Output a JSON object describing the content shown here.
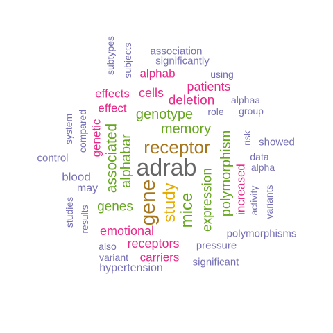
{
  "palette": {
    "purple": "#7570b3",
    "magenta": "#e7298a",
    "green": "#66a61e",
    "gold": "#e6ab02",
    "brown": "#a6761d",
    "gray": "#666666"
  },
  "words": [
    {
      "text": "adrab",
      "color": "gray"
    },
    {
      "text": "gene",
      "color": "brown"
    },
    {
      "text": "receptor",
      "color": "brown"
    },
    {
      "text": "study",
      "color": "gold"
    },
    {
      "text": "mice",
      "color": "green"
    },
    {
      "text": "associated",
      "color": "green"
    },
    {
      "text": "alphabar",
      "color": "green"
    },
    {
      "text": "memory",
      "color": "green"
    },
    {
      "text": "genotype",
      "color": "green"
    },
    {
      "text": "polymorphism",
      "color": "green"
    },
    {
      "text": "expression",
      "color": "green"
    },
    {
      "text": "genes",
      "color": "green"
    },
    {
      "text": "deletion",
      "color": "magenta"
    },
    {
      "text": "patients",
      "color": "magenta"
    },
    {
      "text": "cells",
      "color": "magenta"
    },
    {
      "text": "effects",
      "color": "magenta"
    },
    {
      "text": "effect",
      "color": "magenta"
    },
    {
      "text": "alphab",
      "color": "magenta"
    },
    {
      "text": "genetic",
      "color": "magenta"
    },
    {
      "text": "increased",
      "color": "magenta"
    },
    {
      "text": "emotional",
      "color": "magenta"
    },
    {
      "text": "receptors",
      "color": "magenta"
    },
    {
      "text": "carriers",
      "color": "magenta"
    },
    {
      "text": "association",
      "color": "purple"
    },
    {
      "text": "significantly",
      "color": "purple"
    },
    {
      "text": "subtypes",
      "color": "purple"
    },
    {
      "text": "subjects",
      "color": "purple"
    },
    {
      "text": "using",
      "color": "purple"
    },
    {
      "text": "alphaa",
      "color": "purple"
    },
    {
      "text": "group",
      "color": "purple"
    },
    {
      "text": "role",
      "color": "purple"
    },
    {
      "text": "risk",
      "color": "purple"
    },
    {
      "text": "showed",
      "color": "purple"
    },
    {
      "text": "data",
      "color": "purple"
    },
    {
      "text": "alpha",
      "color": "purple"
    },
    {
      "text": "activity",
      "color": "purple"
    },
    {
      "text": "variants",
      "color": "purple"
    },
    {
      "text": "system",
      "color": "purple"
    },
    {
      "text": "compared",
      "color": "purple"
    },
    {
      "text": "control",
      "color": "purple"
    },
    {
      "text": "blood",
      "color": "purple"
    },
    {
      "text": "may",
      "color": "purple"
    },
    {
      "text": "studies",
      "color": "purple"
    },
    {
      "text": "results",
      "color": "purple"
    },
    {
      "text": "polymorphisms",
      "color": "purple"
    },
    {
      "text": "pressure",
      "color": "purple"
    },
    {
      "text": "also",
      "color": "purple"
    },
    {
      "text": "variant",
      "color": "purple"
    },
    {
      "text": "significant",
      "color": "purple"
    },
    {
      "text": "hypertension",
      "color": "purple"
    }
  ]
}
